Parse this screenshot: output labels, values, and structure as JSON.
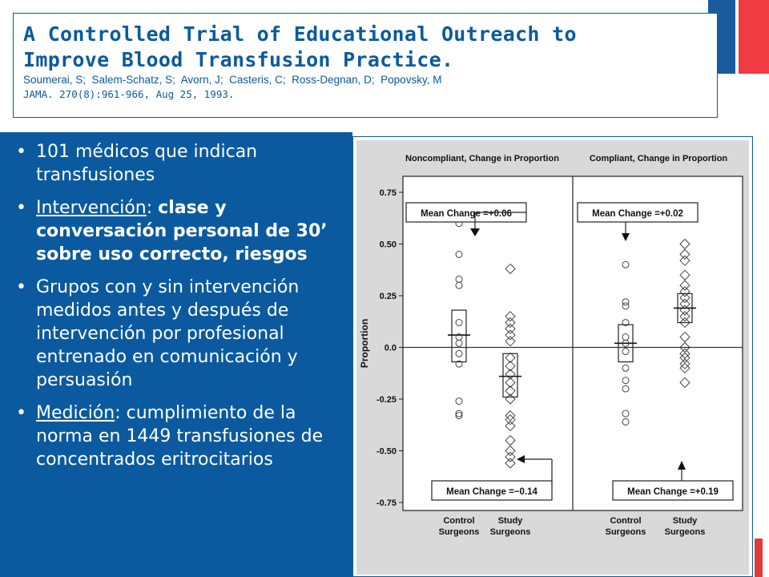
{
  "slide": {
    "title_line1": "A Controlled Trial of Educational Outreach to",
    "title_line2": "Improve Blood Transfusion Practice.",
    "authors": "Soumerai, S;  Salem-Schatz, S;  Avorn, J;  Casteris, C;  Ross-Degnan, D;  Popovsky, M",
    "journal": "JAMA. 270(8):961-966, Aug 25, 1993.",
    "colors": {
      "accent_blue": "#0b5aa0",
      "flag_red": "#ef3b42"
    }
  },
  "bullets": {
    "b1": "101 médicos que indican transfusiones",
    "b2_label": "Intervención",
    "b2_sep": ": ",
    "b2_text": "clase y conversación personal de 30’ sobre uso correcto, riesgos",
    "b3": "Grupos con y sin intervención medidos antes y después de intervención por profesional entrenado en comunicación y persuasión",
    "b4_label": "Medición",
    "b4_text": ": cumplimiento de la norma en 1449 transfusiones de concentrados eritrocitarios",
    "bullet_char": "•"
  },
  "chart_data": {
    "type": "scatter",
    "ylabel": "Proportion",
    "ylim": [
      -0.8,
      0.8
    ],
    "yticks": [
      0.75,
      0.5,
      0.25,
      0.0,
      -0.25,
      -0.5,
      -0.75
    ],
    "ytick_labels": [
      "0.75",
      "0.50",
      "0.25",
      "0.0",
      "-0.25",
      "-0.50",
      "-0.75"
    ],
    "panels": [
      {
        "title": "Noncompliant, Change in Proportion",
        "annotations": [
          {
            "text": "Mean Change =+0.06",
            "target_group": 0
          },
          {
            "text": "Mean Change =−0.14",
            "target_group": 1
          }
        ],
        "groups": [
          {
            "label_line1": "Control",
            "label_line2": "Surgeons",
            "marker": "circle",
            "mean": 0.06,
            "box": [
              -0.07,
              0.18
            ],
            "points": [
              0.6,
              0.45,
              0.33,
              0.3,
              0.12,
              0.05,
              0.02,
              -0.03,
              -0.08,
              -0.26,
              -0.32,
              -0.33
            ]
          },
          {
            "label_line1": "Study",
            "label_line2": "Surgeons",
            "marker": "diamond",
            "mean": -0.14,
            "box": [
              -0.24,
              -0.03
            ],
            "points": [
              0.38,
              0.15,
              0.12,
              0.09,
              0.06,
              0.03,
              -0.05,
              -0.09,
              -0.13,
              -0.17,
              -0.21,
              -0.25,
              -0.33,
              -0.35,
              -0.38,
              -0.45,
              -0.5,
              -0.53,
              -0.56
            ]
          }
        ]
      },
      {
        "title": "Compliant, Change in Proportion",
        "annotations": [
          {
            "text": "Mean Change =+0.02",
            "target_group": 0
          },
          {
            "text": "Mean Change =+0.19",
            "target_group": 1
          }
        ],
        "groups": [
          {
            "label_line1": "Control",
            "label_line2": "Surgeons",
            "marker": "circle",
            "mean": 0.02,
            "box": [
              -0.07,
              0.11
            ],
            "points": [
              0.4,
              0.22,
              0.2,
              0.12,
              0.05,
              0.02,
              -0.02,
              -0.1,
              -0.16,
              -0.2,
              -0.32,
              -0.36
            ]
          },
          {
            "label_line1": "Study",
            "label_line2": "Surgeons",
            "marker": "diamond",
            "mean": 0.19,
            "box": [
              0.12,
              0.26
            ],
            "points": [
              0.5,
              0.45,
              0.42,
              0.35,
              0.3,
              0.27,
              0.24,
              0.21,
              0.18,
              0.15,
              0.12,
              0.05,
              0.0,
              -0.03,
              -0.05,
              -0.08,
              -0.1,
              -0.17
            ]
          }
        ]
      }
    ]
  }
}
